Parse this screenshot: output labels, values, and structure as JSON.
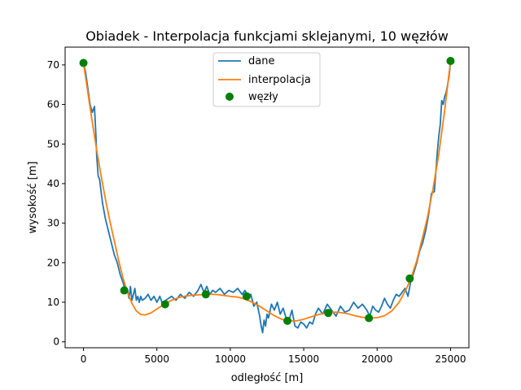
{
  "chart_data": {
    "type": "line",
    "title": "Obiadek - Interpolacja funkcjami sklejanymi, 10 węzłów",
    "xlabel": "odległość [m]",
    "ylabel": "wysokość [m]",
    "xlim": [
      -1250,
      26250
    ],
    "ylim": [
      -1.5,
      74.5
    ],
    "xticks": [
      0,
      5000,
      10000,
      15000,
      20000,
      25000
    ],
    "yticks": [
      0,
      10,
      20,
      30,
      40,
      50,
      60,
      70
    ],
    "legend_position": "upper center",
    "grid": false,
    "series": [
      {
        "name": "dane",
        "kind": "line",
        "color": "#1f77b4",
        "x": [
          0,
          150,
          300,
          450,
          600,
          750,
          850,
          900,
          1000,
          1100,
          1300,
          1500,
          1700,
          1900,
          2100,
          2300,
          2500,
          2700,
          2800,
          2900,
          3000,
          3100,
          3200,
          3300,
          3400,
          3500,
          3600,
          3700,
          3800,
          3900,
          4000,
          4200,
          4400,
          4600,
          4800,
          5000,
          5200,
          5400,
          5600,
          5800,
          6000,
          6300,
          6600,
          6900,
          7200,
          7500,
          7800,
          8000,
          8200,
          8400,
          8600,
          8800,
          9000,
          9300,
          9600,
          9900,
          10200,
          10500,
          10800,
          11000,
          11200,
          11400,
          11600,
          11800,
          12000,
          12100,
          12200,
          12300,
          12400,
          12500,
          12600,
          12800,
          13000,
          13200,
          13400,
          13600,
          13800,
          14000,
          14200,
          14400,
          14600,
          14800,
          15000,
          15200,
          15400,
          15600,
          15800,
          16000,
          16300,
          16600,
          16900,
          17200,
          17500,
          17800,
          18100,
          18400,
          18700,
          19000,
          19300,
          19500,
          19700,
          19900,
          20100,
          20300,
          20500,
          20700,
          20900,
          21100,
          21300,
          21500,
          21700,
          21900,
          22100,
          22300,
          22500,
          22700,
          22900,
          23100,
          23300,
          23500,
          23700,
          23900,
          24100,
          24200,
          24300,
          24400,
          24500,
          24600,
          24700,
          24800,
          24900,
          25000
        ],
        "y": [
          70.5,
          68,
          64,
          60,
          58,
          59.5,
          52,
          47,
          42,
          41,
          35,
          31,
          28,
          25,
          22,
          20,
          17,
          15,
          13.5,
          12.5,
          13,
          11,
          14,
          10.5,
          12,
          13.5,
          10.5,
          11.5,
          10,
          11.5,
          10.5,
          11,
          12,
          10.5,
          11.5,
          10,
          11.5,
          9.5,
          10.5,
          11,
          11.5,
          10.5,
          12,
          11,
          12.5,
          11.5,
          13,
          14.5,
          12.5,
          14,
          12,
          13,
          12.5,
          13.5,
          12,
          13,
          12.5,
          13.5,
          12,
          13,
          11.5,
          12,
          9,
          10,
          6.5,
          4,
          2.3,
          5.5,
          4,
          7,
          6,
          9.5,
          8,
          10,
          7,
          8.5,
          6,
          5.5,
          8,
          4,
          3.5,
          5,
          4.5,
          3.5,
          5,
          4.5,
          7,
          8.5,
          7,
          9.5,
          8,
          6.5,
          9,
          7.5,
          8,
          10,
          8.5,
          9.5,
          8,
          6.5,
          9,
          8,
          7.5,
          9,
          11,
          9.5,
          8.5,
          10.5,
          12,
          11.5,
          12.5,
          13.5,
          11.5,
          15.5,
          17.5,
          20,
          23,
          25,
          28,
          32,
          37.5,
          38,
          48,
          52,
          55,
          61,
          60,
          62,
          63,
          65,
          67,
          71
        ]
      },
      {
        "name": "interpolacja",
        "kind": "line",
        "color": "#ff7f0e",
        "x": [
          0,
          300,
          600,
          900,
          1200,
          1500,
          1800,
          2100,
          2400,
          2700,
          3000,
          3300,
          3600,
          3900,
          4200,
          4600,
          5000,
          5500,
          6000,
          6500,
          7000,
          7500,
          8000,
          8400,
          8800,
          9200,
          9600,
          10000,
          10500,
          11000,
          11500,
          12000,
          12500,
          13000,
          13500,
          14000,
          14500,
          15000,
          15500,
          16000,
          16500,
          17000,
          17500,
          18000,
          18500,
          19000,
          19500,
          20000,
          20500,
          21000,
          21500,
          22000,
          22300,
          22700,
          23000,
          23400,
          23800,
          24200,
          24600,
          25000
        ],
        "y": [
          70.5,
          63,
          55.5,
          48.5,
          42,
          36,
          30.5,
          25.5,
          20.5,
          16,
          12.5,
          9.7,
          7.8,
          6.9,
          6.8,
          7.3,
          8.3,
          9.5,
          10.5,
          11.2,
          11.6,
          11.8,
          11.9,
          12,
          12,
          11.9,
          11.7,
          11.5,
          11.3,
          10.8,
          10,
          9,
          7.8,
          6.6,
          5.7,
          5.3,
          5.3,
          5.7,
          6.3,
          6.9,
          7.3,
          7.5,
          7.4,
          7.1,
          6.6,
          6.2,
          6,
          6.1,
          6.6,
          7.8,
          10,
          13.5,
          16,
          20.5,
          25,
          31,
          38.5,
          47.5,
          58.5,
          71
        ]
      },
      {
        "name": "węzły",
        "kind": "scatter",
        "color": "#008000",
        "x": [
          0,
          2780,
          5560,
          8330,
          11110,
          13890,
          16670,
          19440,
          22220,
          25000
        ],
        "y": [
          70.5,
          13,
          9.5,
          12,
          11.5,
          5.3,
          7.3,
          6,
          16,
          71
        ]
      }
    ]
  }
}
